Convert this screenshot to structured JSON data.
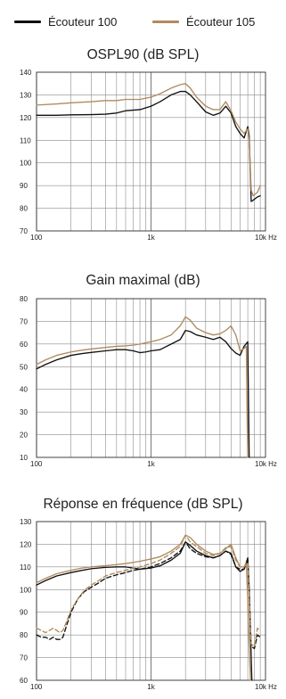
{
  "legend": [
    {
      "label": "Écouteur 100",
      "color": "#111111"
    },
    {
      "label": "Écouteur 105",
      "color": "#b08a5e"
    }
  ],
  "chart_data": [
    {
      "type": "line",
      "title": "OSPL90 (dB SPL)",
      "x_scale": "log",
      "xlim": [
        100,
        10000
      ],
      "ylim": [
        70,
        140
      ],
      "grid": true,
      "x_tick_labels": [
        {
          "value": 100,
          "label": "100"
        },
        {
          "value": 1000,
          "label": "1k"
        },
        {
          "value": 10000,
          "label": "10k Hz"
        }
      ],
      "y_ticks": [
        70,
        80,
        90,
        100,
        110,
        120,
        130,
        140
      ],
      "series": [
        {
          "name": "Écouteur 100",
          "color": "#111111",
          "style": "solid",
          "x": [
            100,
            150,
            200,
            300,
            400,
            500,
            600,
            800,
            1000,
            1200,
            1500,
            1800,
            2000,
            2200,
            2500,
            3000,
            3500,
            4000,
            4500,
            5000,
            5500,
            6000,
            6500,
            7000,
            7200,
            7500,
            7800,
            8000,
            8500,
            9000
          ],
          "y": [
            121,
            121,
            121.2,
            121.3,
            121.5,
            122,
            123,
            123.5,
            125,
            127,
            130,
            131.5,
            131.5,
            130,
            127,
            122.5,
            121,
            122,
            125,
            122,
            116,
            113,
            111,
            116,
            112,
            83,
            83.5,
            84,
            85,
            85.5
          ]
        },
        {
          "name": "Écouteur 105",
          "color": "#b08a5e",
          "style": "solid",
          "x": [
            100,
            150,
            200,
            300,
            400,
            500,
            600,
            800,
            1000,
            1200,
            1500,
            1800,
            2000,
            2200,
            2500,
            3000,
            3500,
            4000,
            4500,
            5000,
            5500,
            6000,
            6500,
            7000,
            7200,
            7500,
            7800,
            8000,
            8500,
            9000
          ],
          "y": [
            125.5,
            126,
            126.5,
            127,
            127.5,
            127.5,
            128,
            128,
            129,
            130.5,
            133,
            134.5,
            135,
            133,
            129,
            125,
            123.5,
            123.5,
            127,
            123,
            118,
            115,
            113,
            115,
            110,
            88,
            85.5,
            86,
            87,
            90
          ]
        }
      ]
    },
    {
      "type": "line",
      "title": "Gain maximal (dB)",
      "x_scale": "log",
      "xlim": [
        100,
        10000
      ],
      "ylim": [
        10,
        80
      ],
      "grid": true,
      "x_tick_labels": [
        {
          "value": 100,
          "label": "100"
        },
        {
          "value": 1000,
          "label": "1k"
        },
        {
          "value": 10000,
          "label": "10k Hz"
        }
      ],
      "y_ticks": [
        10,
        20,
        30,
        40,
        50,
        60,
        70,
        80
      ],
      "series": [
        {
          "name": "Écouteur 100",
          "color": "#111111",
          "style": "solid",
          "x": [
            100,
            120,
            150,
            200,
            250,
            300,
            400,
            500,
            600,
            700,
            800,
            900,
            1000,
            1200,
            1500,
            1800,
            2000,
            2200,
            2500,
            3000,
            3500,
            4000,
            4500,
            5000,
            5500,
            6000,
            6500,
            7000,
            7100,
            7200
          ],
          "y": [
            49,
            51,
            53,
            55,
            55.8,
            56.3,
            57,
            57.5,
            57.5,
            57,
            56.2,
            56.5,
            57,
            57.5,
            60,
            62,
            66,
            65.5,
            64,
            63,
            62,
            63,
            61,
            58,
            56,
            55,
            59,
            61,
            35,
            10
          ]
        },
        {
          "name": "Écouteur 105",
          "color": "#b08a5e",
          "style": "solid",
          "x": [
            100,
            120,
            150,
            200,
            250,
            300,
            400,
            500,
            600,
            700,
            800,
            900,
            1000,
            1200,
            1500,
            1800,
            2000,
            2200,
            2500,
            3000,
            3500,
            4000,
            4500,
            5000,
            5500,
            6000,
            6500,
            6800,
            6900,
            7000
          ],
          "y": [
            51,
            53,
            55,
            56.5,
            57.3,
            57.8,
            58.5,
            59,
            59.2,
            59.5,
            60,
            60.5,
            61,
            62,
            64,
            68,
            72,
            70.5,
            67,
            65,
            64,
            64.5,
            66,
            68,
            64,
            57,
            58,
            59,
            30,
            10
          ]
        }
      ]
    },
    {
      "type": "line",
      "title": "Réponse en fréquence (dB SPL)",
      "x_scale": "log",
      "xlim": [
        100,
        10000
      ],
      "ylim": [
        60,
        130
      ],
      "grid": true,
      "x_tick_labels": [
        {
          "value": 100,
          "label": "100"
        },
        {
          "value": 1000,
          "label": "1k"
        },
        {
          "value": 10000,
          "label": "10k Hz"
        }
      ],
      "y_ticks": [
        60,
        70,
        80,
        90,
        100,
        110,
        120,
        130
      ],
      "series": [
        {
          "name": "Écouteur 100",
          "color": "#111111",
          "style": "solid",
          "x": [
            100,
            120,
            150,
            200,
            250,
            300,
            400,
            500,
            600,
            700,
            800,
            1000,
            1200,
            1500,
            1800,
            2000,
            2200,
            2500,
            3000,
            3500,
            4000,
            4500,
            5000,
            5500,
            6000,
            6500,
            7000,
            7200,
            7400,
            7600
          ],
          "y": [
            102,
            104,
            106,
            107.5,
            108.5,
            109.2,
            109.8,
            110,
            110,
            109.5,
            109,
            109.5,
            110.5,
            113,
            116,
            121,
            119.5,
            117,
            115,
            114,
            115,
            117,
            116,
            110,
            108,
            109,
            114,
            100,
            80,
            60
          ]
        },
        {
          "name": "Écouteur 105",
          "color": "#b08a5e",
          "style": "solid",
          "x": [
            100,
            120,
            150,
            200,
            250,
            300,
            400,
            500,
            600,
            700,
            800,
            1000,
            1200,
            1500,
            1800,
            2000,
            2200,
            2500,
            3000,
            3500,
            4000,
            4500,
            5000,
            5500,
            6000,
            6500,
            6800,
            7000,
            7200,
            7400
          ],
          "y": [
            103,
            105,
            107,
            108.5,
            109.5,
            110,
            110.5,
            111,
            111.5,
            112,
            112.5,
            113.5,
            114.5,
            117,
            120,
            124,
            123,
            120,
            117,
            115.5,
            116,
            118,
            120,
            114,
            110,
            110,
            112,
            95,
            75,
            60
          ]
        },
        {
          "name": "Écouteur 100 (dashed)",
          "color": "#111111",
          "style": "dashed",
          "x": [
            100,
            110,
            120,
            130,
            140,
            150,
            160,
            170,
            180,
            200,
            230,
            260,
            300,
            350,
            400,
            500,
            600,
            700,
            800,
            1000,
            1200,
            1500,
            1800,
            2000,
            2200,
            2500,
            3000,
            3500,
            4000,
            4500,
            5000,
            5500,
            6000,
            6500,
            7000,
            7200,
            7500,
            8000,
            8500,
            9000
          ],
          "y": [
            80,
            79,
            79,
            78,
            79,
            78,
            78,
            79,
            83,
            90,
            96,
            99,
            101,
            103,
            105,
            106.5,
            107.5,
            108.5,
            109,
            110,
            111.5,
            114,
            117,
            121,
            118,
            116,
            114.5,
            114,
            115,
            117,
            115.5,
            110,
            109,
            109,
            113,
            100,
            75,
            74,
            80,
            79
          ]
        },
        {
          "name": "Écouteur 105 (dashed)",
          "color": "#b08a5e",
          "style": "dashed",
          "x": [
            100,
            110,
            120,
            130,
            140,
            150,
            160,
            170,
            180,
            200,
            230,
            260,
            300,
            350,
            400,
            500,
            600,
            700,
            800,
            1000,
            1200,
            1500,
            1800,
            2000,
            2200,
            2500,
            3000,
            3500,
            4000,
            4500,
            5000,
            5500,
            6000,
            6500,
            7000,
            7200,
            7500,
            8000,
            8500,
            9000
          ],
          "y": [
            83,
            82,
            81,
            82,
            83,
            82,
            81,
            82,
            85,
            91,
            96,
            99.5,
            102,
            104,
            106,
            107.5,
            108.5,
            109.5,
            110,
            111.5,
            113,
            116,
            119,
            124,
            121,
            119,
            116,
            115,
            116,
            118.5,
            119,
            113,
            110,
            110,
            112,
            97,
            76,
            75,
            83,
            82
          ]
        }
      ]
    }
  ]
}
